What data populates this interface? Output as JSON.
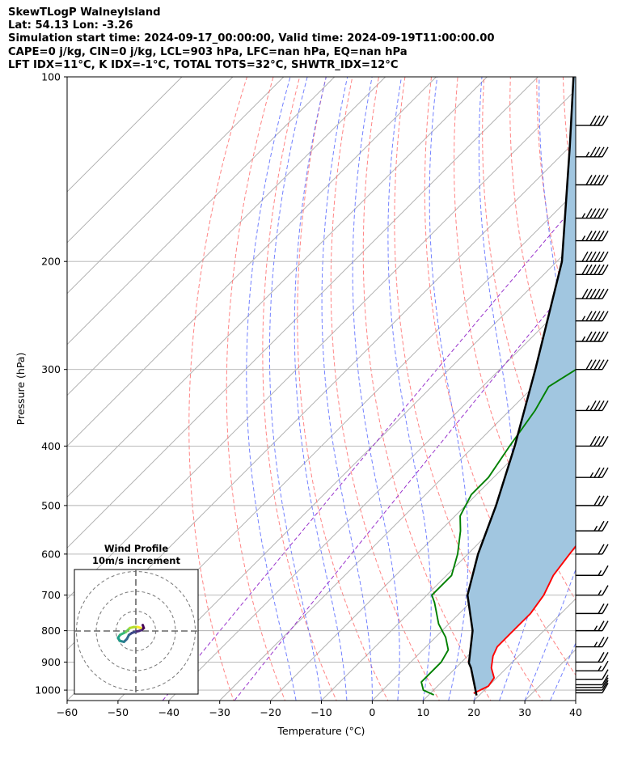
{
  "title": {
    "line1": "SkewTLogP WalneyIsland",
    "line2": "Lat: 54.13   Lon: -3.26",
    "line3": "Simulation start time: 2024-09-17_00:00:00, Valid time: 2024-09-19T11:00:00.00",
    "line4": "CAPE=0 j/kg, CIN=0 j/kg, LCL=903 hPa, LFC=nan hPa, EQ=nan hPa",
    "line5": "LFT IDX=11°C, K IDX=-1°C, TOTAL TOTS=32°C, SHWTR_IDX=12°C"
  },
  "chart_data": {
    "type": "line",
    "xlabel": "Temperature (°C)",
    "ylabel": "Pressure (hPa)",
    "xlim": [
      -60,
      40
    ],
    "ylim": [
      1040,
      100
    ],
    "yscale": "log",
    "skew": "45 degrees",
    "x_ticks": [
      -60,
      -50,
      -40,
      -30,
      -20,
      -10,
      0,
      10,
      20,
      30,
      40
    ],
    "x_tick_labels": [
      "−60",
      "−50",
      "−40",
      "−30",
      "−20",
      "−10",
      "0",
      "10",
      "20",
      "30",
      "40"
    ],
    "y_ticks": [
      1000,
      900,
      800,
      700,
      600,
      500,
      400,
      300,
      200,
      100
    ],
    "y_tick_labels": [
      "1000",
      "900",
      "800",
      "700",
      "600",
      "500",
      "400",
      "300",
      "200",
      "100"
    ],
    "grid": true,
    "series": [
      {
        "role": "temperature",
        "color": "#ff0000",
        "points": [
          [
            18.5,
            1012
          ],
          [
            20,
            985
          ],
          [
            19.5,
            955
          ],
          [
            17,
            920
          ],
          [
            15,
            880
          ],
          [
            14,
            850
          ],
          [
            14,
            800
          ],
          [
            14,
            750
          ],
          [
            13,
            700
          ],
          [
            11,
            650
          ],
          [
            10,
            600
          ],
          [
            9,
            550
          ],
          [
            7,
            500
          ],
          [
            3,
            450
          ],
          [
            -1,
            400
          ],
          [
            -5,
            350
          ],
          [
            -8,
            300
          ],
          [
            -10,
            250
          ],
          [
            -12,
            200
          ],
          [
            -14,
            175
          ],
          [
            -16,
            150
          ],
          [
            -22,
            125
          ],
          [
            -29,
            100
          ]
        ]
      },
      {
        "role": "dewpoint",
        "color": "#008000",
        "points": [
          [
            11,
            1018
          ],
          [
            8,
            1000
          ],
          [
            6,
            970
          ],
          [
            6,
            900
          ],
          [
            5,
            860
          ],
          [
            2,
            820
          ],
          [
            -2,
            780
          ],
          [
            -7,
            720
          ],
          [
            -9,
            700
          ],
          [
            -9,
            650
          ],
          [
            -12,
            600
          ],
          [
            -16,
            550
          ],
          [
            -19,
            520
          ],
          [
            -21,
            480
          ],
          [
            -21,
            450
          ],
          [
            -23,
            400
          ],
          [
            -25,
            350
          ],
          [
            -27,
            320
          ],
          [
            -25,
            300
          ],
          [
            -27,
            265
          ],
          [
            -30,
            240
          ],
          [
            -34,
            200
          ],
          [
            -36,
            175
          ],
          [
            -38,
            160
          ],
          [
            -41,
            140
          ],
          [
            -45,
            125
          ],
          [
            -49,
            110
          ],
          [
            -51,
            100
          ]
        ]
      },
      {
        "role": "parcel",
        "color": "#000000",
        "points": [
          [
            19.5,
            1020
          ],
          [
            13,
            920
          ],
          [
            11.6,
            903
          ],
          [
            6,
            800
          ],
          [
            -2,
            700
          ],
          [
            -8,
            600
          ],
          [
            -14,
            500
          ],
          [
            -22,
            400
          ],
          [
            -33,
            300
          ],
          [
            -49,
            200
          ],
          [
            -70,
            130
          ],
          [
            -83,
            100
          ]
        ]
      }
    ],
    "shaded_region": {
      "between": [
        "parcel",
        "temperature"
      ],
      "color": "#a1c6e0"
    },
    "reference_lines": {
      "isotherms": {
        "color": "#aaaaaa",
        "step": 10
      },
      "dry_adiabats": {
        "color": "#ff6f6f",
        "style": "dashed"
      },
      "moist_adiabats": {
        "color": "#5b6bff",
        "style": "dashed"
      },
      "mixing_ratio": {
        "color": "#9933cc",
        "style": "dashed"
      }
    },
    "wind_barbs": {
      "levels_hpa": [
        1010,
        1000,
        990,
        980,
        960,
        930,
        900,
        850,
        800,
        750,
        700,
        650,
        600,
        550,
        500,
        450,
        400,
        350,
        300,
        270,
        250,
        230,
        210,
        200,
        185,
        170,
        150,
        135,
        120
      ],
      "speed_kt": [
        10,
        10,
        10,
        10,
        10,
        15,
        20,
        25,
        25,
        20,
        15,
        15,
        20,
        25,
        30,
        35,
        40,
        45,
        50,
        55,
        55,
        60,
        60,
        60,
        55,
        55,
        50,
        45,
        40
      ]
    },
    "inset": {
      "title_line1": "Wind Profile",
      "title_line2": "10m/s increment",
      "hodograph": [
        [
          3.5,
          3
        ],
        [
          4,
          1.5
        ],
        [
          3,
          0.5
        ],
        [
          1.5,
          0
        ],
        [
          -0.5,
          -0.5
        ],
        [
          -2,
          -1
        ],
        [
          -3.5,
          -2
        ],
        [
          -4.5,
          -4
        ],
        [
          -6,
          -5.5
        ],
        [
          -8,
          -5
        ],
        [
          -9,
          -3.5
        ],
        [
          -8,
          -2
        ],
        [
          -6,
          -1
        ],
        [
          -5,
          -0.5
        ],
        [
          -4,
          0.5
        ],
        [
          -3,
          1.5
        ],
        [
          -1,
          2
        ],
        [
          1,
          2
        ],
        [
          2.5,
          1.5
        ]
      ]
    }
  }
}
